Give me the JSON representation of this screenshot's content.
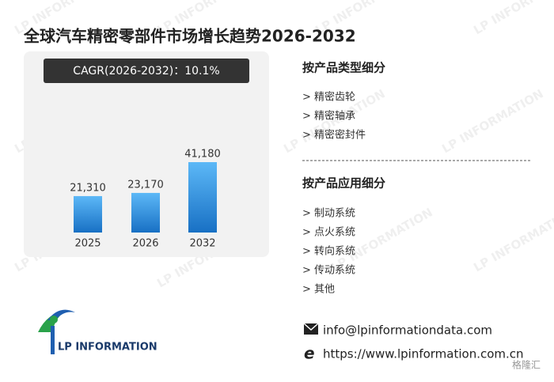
{
  "title": "全球汽车精密零部件市场增长趋势2026-2032",
  "chart_data": {
    "type": "bar",
    "annotation": "CAGR(2026-2032)：10.1%",
    "categories": [
      "2025",
      "2026",
      "2032"
    ],
    "values": [
      21310,
      23170,
      41180
    ],
    "value_labels": [
      "21,310",
      "23,170",
      "41,180"
    ],
    "color": "#2a8ae0"
  },
  "segments": [
    {
      "heading": "按产品类型细分",
      "items": [
        "> 精密齿轮",
        "> 精密轴承",
        "> 精密密封件"
      ]
    },
    {
      "heading": "按产品应用细分",
      "items": [
        "> 制动系统",
        "> 点火系统",
        "> 转向系统",
        "> 传动系统",
        "> 其他"
      ]
    }
  ],
  "contact": {
    "email": "info@lpinformationdata.com",
    "website": "https://www.lpinformation.com.cn"
  },
  "logo": "LP INFORMATION",
  "watermark": "LP INFORMATION",
  "corner_mark": "格隆汇"
}
